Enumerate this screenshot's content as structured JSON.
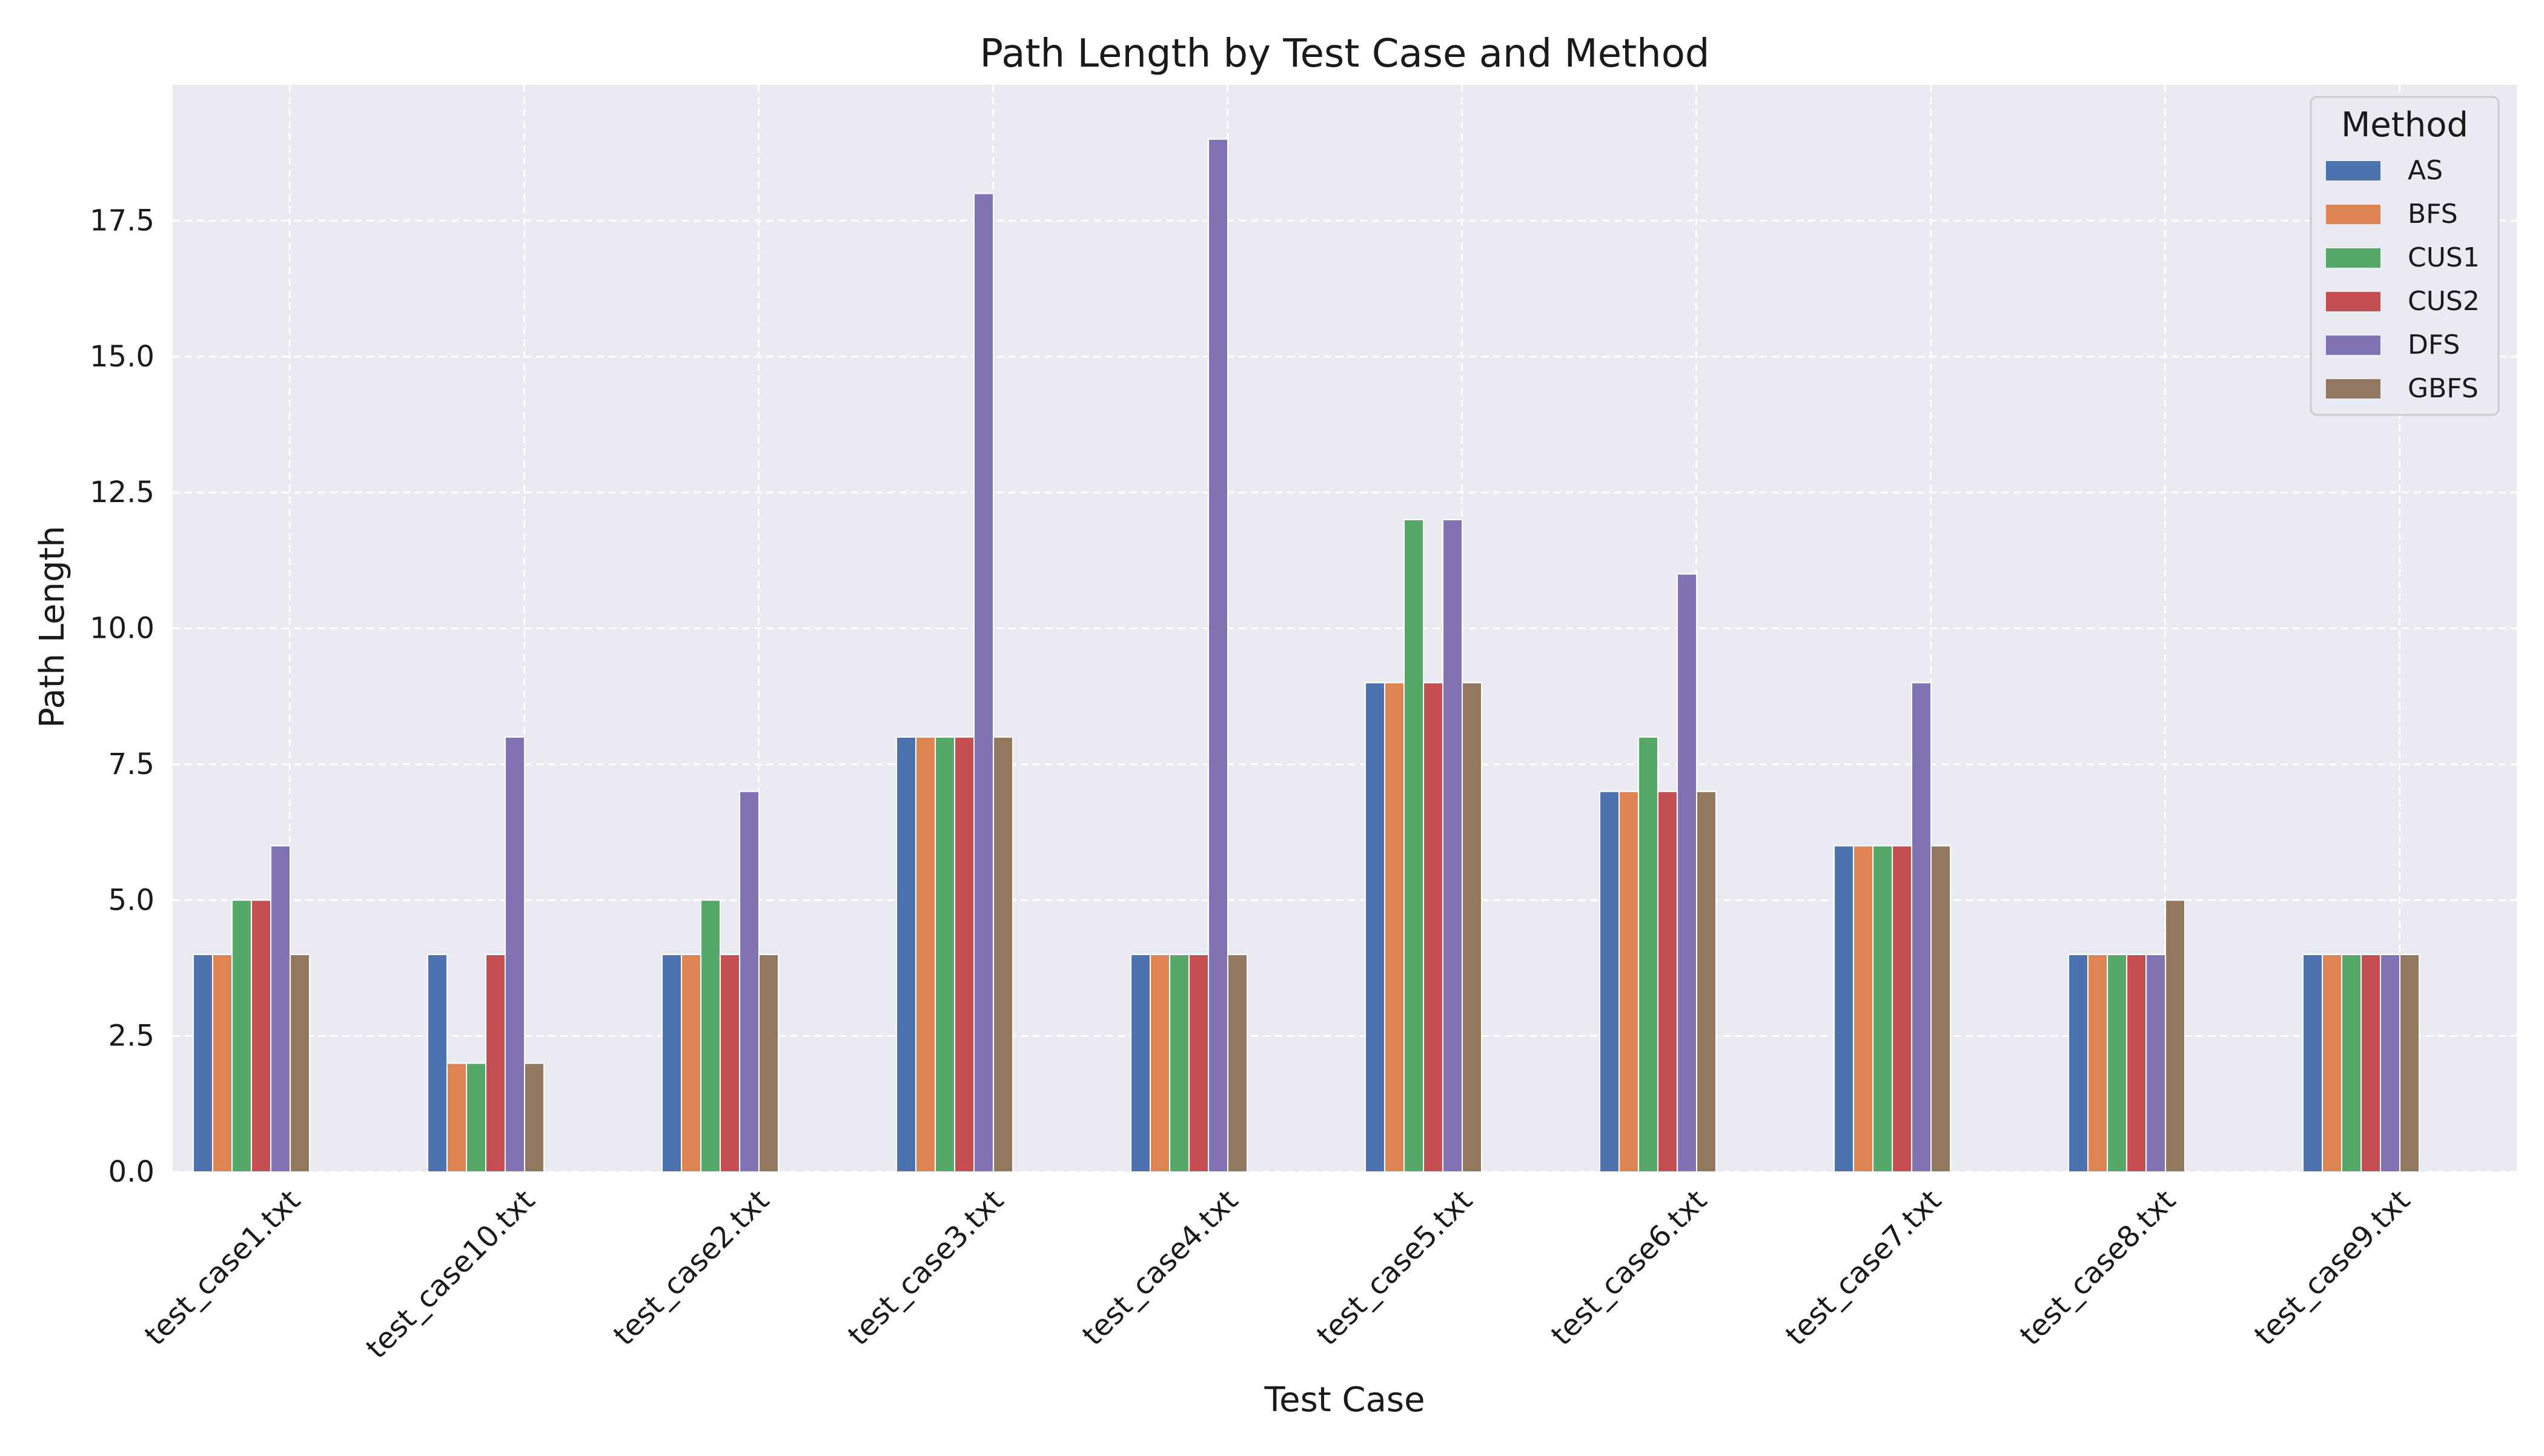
{
  "chart_data": {
    "type": "bar",
    "title": "Path Length by Test Case and Method",
    "xlabel": "Test Case",
    "ylabel": "Path Length",
    "ylim": [
      0,
      20
    ],
    "yticks": [
      0.0,
      2.5,
      5.0,
      7.5,
      10.0,
      12.5,
      15.0,
      17.5
    ],
    "ytick_labels": [
      "0.0",
      "2.5",
      "5.0",
      "7.5",
      "10.0",
      "12.5",
      "15.0",
      "17.5"
    ],
    "grid": true,
    "legend_position": "top-right",
    "legend_title": "Method",
    "categories": [
      "test_case1.txt",
      "test_case10.txt",
      "test_case2.txt",
      "test_case3.txt",
      "test_case4.txt",
      "test_case5.txt",
      "test_case6.txt",
      "test_case7.txt",
      "test_case8.txt",
      "test_case9.txt"
    ],
    "series": [
      {
        "name": "AS",
        "color": "#4c72b0",
        "values": [
          4,
          4,
          4,
          8,
          4,
          9,
          7,
          6,
          4,
          4
        ]
      },
      {
        "name": "BFS",
        "color": "#dd8452",
        "values": [
          4,
          2,
          4,
          8,
          4,
          9,
          7,
          6,
          4,
          4
        ]
      },
      {
        "name": "CUS1",
        "color": "#55a868",
        "values": [
          5,
          2,
          5,
          8,
          4,
          12,
          8,
          6,
          4,
          4
        ]
      },
      {
        "name": "CUS2",
        "color": "#c44e52",
        "values": [
          5,
          4,
          4,
          8,
          4,
          9,
          7,
          6,
          4,
          4
        ]
      },
      {
        "name": "DFS",
        "color": "#8172b3",
        "values": [
          6,
          8,
          7,
          18,
          19,
          12,
          11,
          9,
          4,
          4
        ]
      },
      {
        "name": "GBFS",
        "color": "#937860",
        "values": [
          4,
          2,
          4,
          8,
          4,
          9,
          7,
          6,
          5,
          4
        ]
      }
    ]
  },
  "colors": {
    "plot_background": "#eaeaf2",
    "grid": "#ffffff"
  }
}
